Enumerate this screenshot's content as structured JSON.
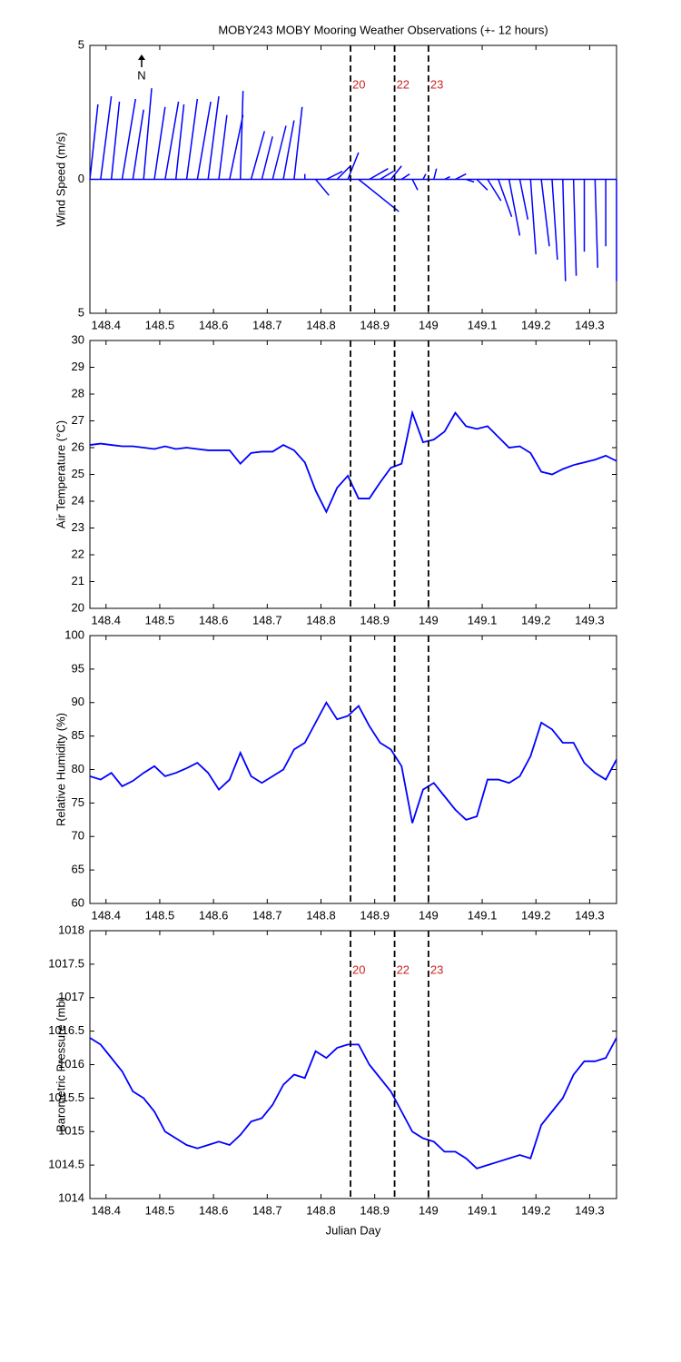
{
  "chart_data": [
    {
      "type": "stick",
      "title": "MOBY243 MOBY Mooring Weather Observations (+- 12 hours)",
      "y_label": "Wind Speed (m/s)",
      "annotation": "N",
      "color": "#0000ff",
      "x": [
        148.37,
        148.39,
        148.41,
        148.43,
        148.45,
        148.47,
        148.49,
        148.51,
        148.53,
        148.55,
        148.57,
        148.59,
        148.61,
        148.63,
        148.65,
        148.67,
        148.69,
        148.71,
        148.73,
        148.75,
        148.77,
        148.79,
        148.81,
        148.83,
        148.85,
        148.87,
        148.89,
        148.91,
        148.93,
        148.95,
        148.97,
        148.99,
        149.01,
        149.03,
        149.05,
        149.07,
        149.09,
        149.11,
        149.13,
        149.15,
        149.17,
        149.19,
        149.21,
        149.23,
        149.25,
        149.27,
        149.29,
        149.31,
        149.33,
        149.35
      ],
      "u": [
        0.3,
        0.4,
        0.3,
        0.5,
        0.4,
        0.3,
        0.4,
        0.5,
        0.3,
        0.4,
        0.5,
        0.4,
        0.3,
        0.5,
        0.1,
        0.5,
        0.4,
        0.5,
        0.4,
        0.3,
        0.0,
        0.5,
        0.6,
        0.5,
        0.4,
        1.5,
        0.7,
        0.5,
        0.4,
        0.3,
        0.2,
        0.1,
        0.1,
        0.2,
        0.4,
        0.3,
        0.4,
        0.5,
        0.5,
        0.4,
        0.3,
        0.2,
        0.3,
        0.2,
        0.1,
        0.1,
        0.0,
        0.1,
        0.0,
        0.0
      ],
      "v": [
        2.8,
        3.1,
        2.9,
        3.0,
        2.6,
        3.4,
        2.7,
        2.9,
        2.8,
        3.0,
        2.9,
        3.1,
        2.4,
        2.4,
        3.3,
        1.8,
        1.6,
        2.0,
        2.2,
        2.7,
        0.2,
        -0.6,
        0.3,
        0.5,
        1.0,
        -1.2,
        0.4,
        0.3,
        0.5,
        0.2,
        -0.4,
        0.2,
        0.4,
        0.1,
        0.2,
        -0.1,
        -0.4,
        -0.8,
        -1.4,
        -2.1,
        -1.5,
        -2.8,
        -2.5,
        -3.0,
        -3.8,
        -3.6,
        -2.7,
        -3.3,
        -2.5,
        -3.8
      ],
      "xlim": [
        148.37,
        149.35
      ],
      "ylim": [
        -5,
        5
      ],
      "xticks": [
        148.4,
        148.5,
        148.6,
        148.7,
        148.8,
        148.9,
        149,
        149.1,
        149.2,
        149.3
      ],
      "yticks": [
        {
          "value": -5,
          "label": "5"
        },
        0,
        5
      ],
      "vlines": [
        {
          "value": 148.855,
          "label": "20"
        },
        {
          "value": 148.937,
          "label": "22"
        },
        {
          "value": 149.0,
          "label": "23"
        }
      ],
      "vline_color": "#cc2222"
    },
    {
      "type": "line",
      "y_label": "Air Temperature (°C)",
      "color": "#0000ff",
      "x": [
        148.37,
        148.39,
        148.41,
        148.43,
        148.45,
        148.47,
        148.49,
        148.51,
        148.53,
        148.55,
        148.57,
        148.59,
        148.61,
        148.63,
        148.65,
        148.67,
        148.69,
        148.71,
        148.73,
        148.75,
        148.77,
        148.79,
        148.81,
        148.83,
        148.85,
        148.87,
        148.89,
        148.91,
        148.93,
        148.95,
        148.97,
        148.99,
        149.01,
        149.03,
        149.05,
        149.07,
        149.09,
        149.11,
        149.13,
        149.15,
        149.17,
        149.19,
        149.21,
        149.23,
        149.25,
        149.27,
        149.29,
        149.31,
        149.33,
        149.35
      ],
      "values": [
        26.1,
        26.15,
        26.1,
        26.05,
        26.05,
        26.0,
        25.95,
        26.05,
        25.95,
        26.0,
        25.95,
        25.9,
        25.9,
        25.9,
        25.4,
        25.8,
        25.85,
        25.85,
        26.1,
        25.9,
        25.45,
        24.4,
        23.6,
        24.5,
        24.95,
        24.1,
        24.1,
        24.7,
        25.25,
        25.4,
        27.3,
        26.2,
        26.3,
        26.6,
        27.3,
        26.8,
        26.7,
        26.8,
        26.4,
        26.0,
        26.05,
        25.8,
        25.1,
        25.0,
        25.2,
        25.35,
        25.45,
        25.55,
        25.7,
        25.5
      ],
      "xlim": [
        148.37,
        149.35
      ],
      "ylim": [
        20,
        30
      ],
      "xticks": [
        148.4,
        148.5,
        148.6,
        148.7,
        148.8,
        148.9,
        149,
        149.1,
        149.2,
        149.3
      ],
      "yticks": [
        20,
        21,
        22,
        23,
        24,
        25,
        26,
        27,
        28,
        29,
        30
      ],
      "vlines": [
        148.855,
        148.937,
        149.0
      ]
    },
    {
      "type": "line",
      "y_label": "Relative Humidity (%)",
      "color": "#0000ff",
      "x": [
        148.37,
        148.39,
        148.41,
        148.43,
        148.45,
        148.47,
        148.49,
        148.51,
        148.53,
        148.55,
        148.57,
        148.59,
        148.61,
        148.63,
        148.65,
        148.67,
        148.69,
        148.71,
        148.73,
        148.75,
        148.77,
        148.79,
        148.81,
        148.83,
        148.85,
        148.87,
        148.89,
        148.91,
        148.93,
        148.95,
        148.97,
        148.99,
        149.01,
        149.03,
        149.05,
        149.07,
        149.09,
        149.11,
        149.13,
        149.15,
        149.17,
        149.19,
        149.21,
        149.23,
        149.25,
        149.27,
        149.29,
        149.31,
        149.33,
        149.35
      ],
      "values": [
        79,
        78.5,
        79.5,
        77.5,
        78.3,
        79.5,
        80.5,
        79,
        79.5,
        80.2,
        81,
        79.5,
        77,
        78.5,
        82.5,
        79,
        78,
        79,
        80,
        83,
        84,
        87,
        90,
        87.5,
        88,
        89.5,
        86.5,
        84,
        83,
        80.5,
        72,
        77,
        78,
        76,
        74,
        72.5,
        73,
        78.5,
        78.5,
        78,
        79,
        82,
        87,
        86,
        84,
        84,
        81,
        79.5,
        78.5,
        81.5
      ],
      "xlim": [
        148.37,
        149.35
      ],
      "ylim": [
        60,
        100
      ],
      "xticks": [
        148.4,
        148.5,
        148.6,
        148.7,
        148.8,
        148.9,
        149,
        149.1,
        149.2,
        149.3
      ],
      "yticks": [
        60,
        65,
        70,
        75,
        80,
        85,
        90,
        95,
        100
      ],
      "vlines": [
        148.855,
        148.937,
        149.0
      ]
    },
    {
      "type": "line",
      "y_label": "Barometric Pressure (mb)",
      "x_label": "Julian Day",
      "color": "#0000ff",
      "x": [
        148.37,
        148.39,
        148.41,
        148.43,
        148.45,
        148.47,
        148.49,
        148.51,
        148.53,
        148.55,
        148.57,
        148.59,
        148.61,
        148.63,
        148.65,
        148.67,
        148.69,
        148.71,
        148.73,
        148.75,
        148.77,
        148.79,
        148.81,
        148.83,
        148.85,
        148.87,
        148.89,
        148.91,
        148.93,
        148.95,
        148.97,
        148.99,
        149.01,
        149.03,
        149.05,
        149.07,
        149.09,
        149.11,
        149.13,
        149.15,
        149.17,
        149.19,
        149.21,
        149.23,
        149.25,
        149.27,
        149.29,
        149.31,
        149.33,
        149.35
      ],
      "values": [
        1016.4,
        1016.3,
        1016.1,
        1015.9,
        1015.6,
        1015.5,
        1015.3,
        1015.0,
        1014.9,
        1014.8,
        1014.75,
        1014.8,
        1014.85,
        1014.8,
        1014.95,
        1015.15,
        1015.2,
        1015.4,
        1015.7,
        1015.85,
        1015.8,
        1016.2,
        1016.1,
        1016.25,
        1016.3,
        1016.3,
        1016.0,
        1015.8,
        1015.6,
        1015.3,
        1015.0,
        1014.9,
        1014.85,
        1014.7,
        1014.7,
        1014.6,
        1014.45,
        1014.5,
        1014.55,
        1014.6,
        1014.65,
        1014.6,
        1015.1,
        1015.3,
        1015.5,
        1015.85,
        1016.05,
        1016.05,
        1016.1,
        1016.4
      ],
      "xlim": [
        148.37,
        149.35
      ],
      "ylim": [
        1014,
        1018
      ],
      "xticks": [
        148.4,
        148.5,
        148.6,
        148.7,
        148.8,
        148.9,
        149,
        149.1,
        149.2,
        149.3
      ],
      "yticks": [
        1014,
        1014.5,
        1015,
        1015.5,
        1016,
        1016.5,
        1017,
        1017.5,
        1018
      ],
      "vlines": [
        {
          "value": 148.855,
          "label": "20"
        },
        {
          "value": 148.937,
          "label": "22"
        },
        {
          "value": 149.0,
          "label": "23"
        }
      ],
      "vline_color": "#cc2222"
    }
  ]
}
